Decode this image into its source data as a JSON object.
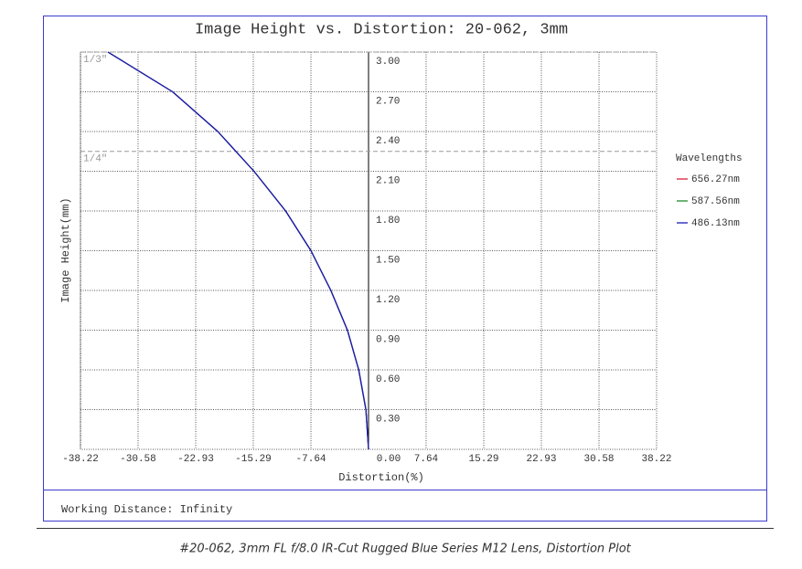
{
  "chart_data": {
    "type": "line",
    "title": "Image Height vs. Distortion: 20-062, 3mm",
    "x_label": "Distortion(%)",
    "y_label": "Image Height(mm)",
    "legend_title": "Wavelengths",
    "series": [
      {
        "name": "656.27nm",
        "color": "#d8203a",
        "x": [
          0,
          -0.35,
          -1.3,
          -2.8,
          -5.0,
          -7.64,
          -11.0,
          -15.2,
          -20.0,
          -26.0,
          -34.58
        ],
        "values": [
          0,
          0.3,
          0.6,
          0.9,
          1.2,
          1.5,
          1.8,
          2.1,
          2.4,
          2.7,
          3.0
        ]
      },
      {
        "name": "587.56nm",
        "color": "#1f8a2a",
        "x": [
          0,
          -0.35,
          -1.3,
          -2.8,
          -5.0,
          -7.64,
          -11.0,
          -15.2,
          -20.0,
          -26.0,
          -34.58
        ],
        "values": [
          0,
          0.3,
          0.6,
          0.9,
          1.2,
          1.5,
          1.8,
          2.1,
          2.4,
          2.7,
          3.0
        ]
      },
      {
        "name": "486.13nm",
        "color": "#1a1ab8",
        "x": [
          0,
          -0.35,
          -1.3,
          -2.8,
          -5.0,
          -7.64,
          -11.0,
          -15.2,
          -20.0,
          -26.0,
          -34.58
        ],
        "values": [
          0,
          0.3,
          0.6,
          0.9,
          1.2,
          1.5,
          1.8,
          2.1,
          2.4,
          2.7,
          3.0
        ]
      }
    ],
    "xlim": [
      -38.22,
      38.22
    ],
    "xticks": [
      -38.22,
      -30.58,
      -22.93,
      -15.29,
      -7.64,
      {
        "value": 0,
        "label": "0.00"
      },
      7.64,
      15.29,
      22.93,
      30.58,
      38.22
    ],
    "ylim": [
      0,
      3
    ],
    "yticks": [
      {
        "value": 0.3,
        "label": "0.30"
      },
      {
        "value": 0.6,
        "label": "0.60"
      },
      {
        "value": 0.9,
        "label": "0.90"
      },
      {
        "value": 1.2,
        "label": "1.20"
      },
      {
        "value": 1.5,
        "label": "1.50"
      },
      {
        "value": 1.8,
        "label": "1.80"
      },
      {
        "value": 2.1,
        "label": "2.10"
      },
      {
        "value": 2.4,
        "label": "2.40"
      },
      {
        "value": 2.7,
        "label": "2.70"
      },
      {
        "value": 3,
        "label": "3.00"
      }
    ],
    "grid": true,
    "annotations": [
      {
        "label": "1/3\"",
        "value": 3
      },
      {
        "label": "1/4\"",
        "value": 2.25
      }
    ],
    "footer": "Working Distance: Infinity",
    "caption": "#20-062, 3mm FL f/8.0 IR-Cut Rugged Blue Series M12 Lens, Distortion Plot"
  }
}
